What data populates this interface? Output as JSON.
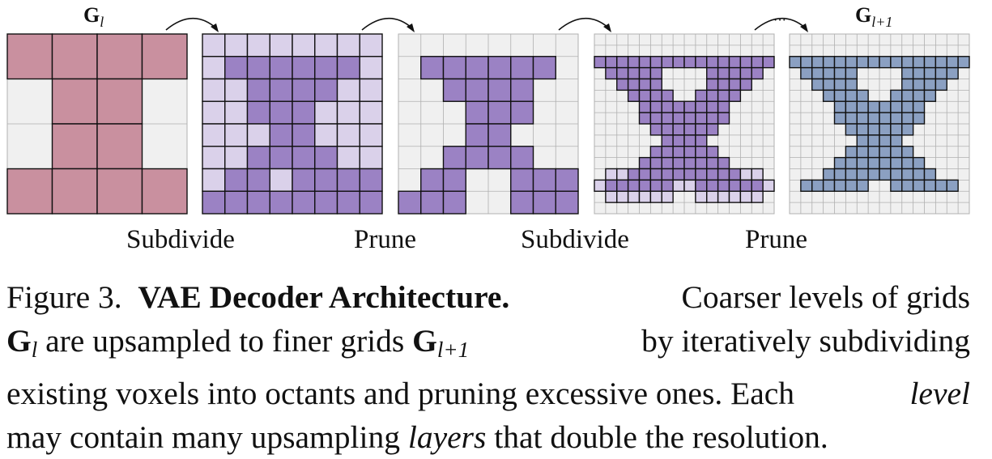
{
  "labels": {
    "g_l_symbol": "G",
    "g_l_sub": "l",
    "g_l1_symbol": "G",
    "g_l1_sub": "l+1",
    "ellipsis": "···",
    "steps": [
      "Subdivide",
      "Prune",
      "Subdivide",
      "Prune"
    ]
  },
  "caption": {
    "figure_number": "Figure 3.",
    "title": "VAE Decoder Architecture.",
    "line1_rest": "Coarser levels of grids",
    "g_symbol": "G",
    "g_sub": "l",
    "line2_a": "are upsampled to finer grids",
    "g2_symbol": "G",
    "g2_sub": "l+1",
    "line2_b": "by iteratively subdividing",
    "line3": "existing voxels into octants and pruning excessive ones. Each",
    "level_word": "level",
    "line4_a": "may contain many upsampling",
    "layers_word": "layers",
    "line4_b": "that double the resolution."
  },
  "colors": {
    "coarse_fill": "#c9909f",
    "empty_fill": "#f0f0f0",
    "kept_fill": "#9b82c4",
    "pruned_fill": "#dad1ea",
    "final_fill": "#8ba0c2",
    "grid_line": "#111111",
    "light_grid": "#b0b0b0"
  }
}
